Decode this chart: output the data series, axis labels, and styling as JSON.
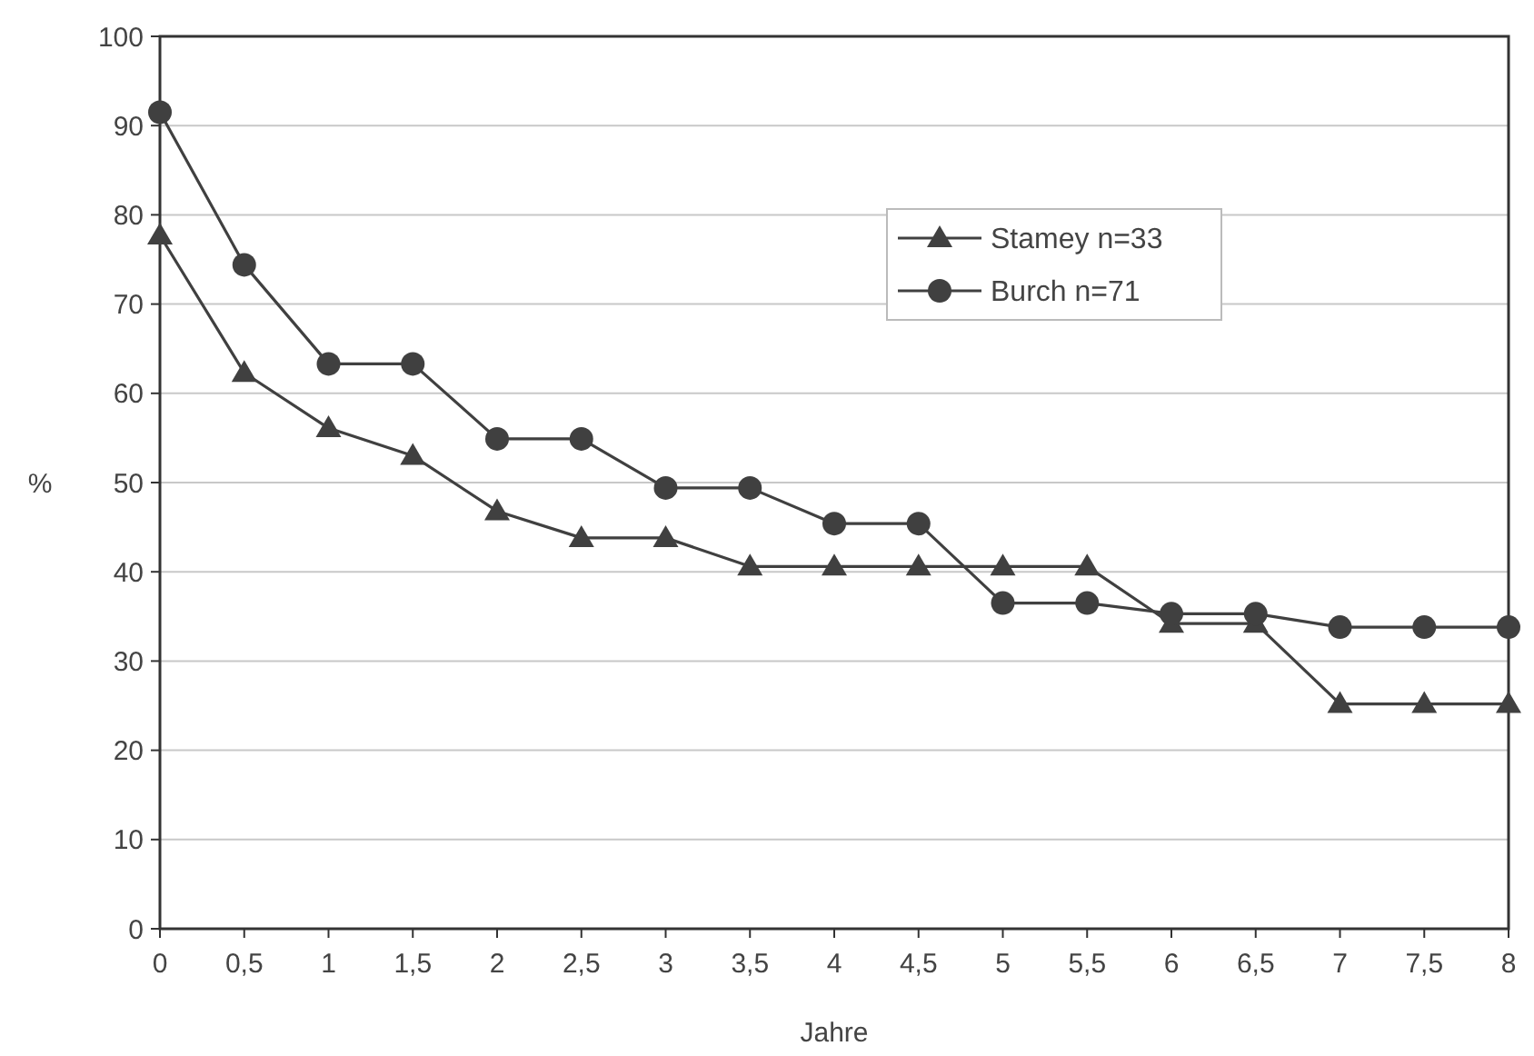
{
  "chart_data": {
    "type": "line",
    "xlabel": "Jahre",
    "ylabel": "%",
    "categories": [
      "0",
      "0,5",
      "1",
      "1,5",
      "2",
      "2,5",
      "3",
      "3,5",
      "4",
      "4,5",
      "5",
      "5,5",
      "6",
      "6,5",
      "7",
      "7,5",
      "8"
    ],
    "series": [
      {
        "name": "Stamey n=33",
        "color": "#404040",
        "marker": "triangle",
        "values": [
          77.7,
          62.3,
          56.1,
          53,
          46.8,
          43.8,
          43.8,
          40.6,
          40.6,
          40.6,
          40.6,
          40.6,
          34.2,
          34.2,
          25.2,
          25.2,
          25.2
        ]
      },
      {
        "name": "Burch n=71",
        "color": "#404040",
        "marker": "circle",
        "values": [
          91.5,
          74.4,
          63.3,
          63.3,
          54.9,
          54.9,
          49.4,
          49.4,
          45.4,
          45.4,
          36.5,
          36.5,
          35.3,
          35.3,
          33.8,
          33.8,
          33.8
        ]
      }
    ],
    "ylim": [
      0,
      100
    ],
    "yticks": [
      0,
      10,
      20,
      30,
      40,
      50,
      60,
      70,
      80,
      90,
      100
    ],
    "grid": "y",
    "legend": "top right",
    "line_style": "solid"
  }
}
